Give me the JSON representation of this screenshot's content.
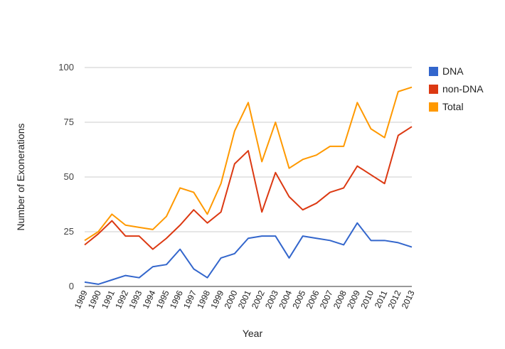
{
  "chart_data": {
    "type": "line",
    "x": [
      "1989",
      "1990",
      "1991",
      "1992",
      "1993",
      "1994",
      "1995",
      "1996",
      "1997",
      "1998",
      "1999",
      "2000",
      "2001",
      "2002",
      "2003",
      "2004",
      "2005",
      "2006",
      "2007",
      "2008",
      "2009",
      "2010",
      "2011",
      "2012",
      "2013"
    ],
    "series": [
      {
        "name": "DNA",
        "color": "#3366cc",
        "values": [
          2,
          1,
          3,
          5,
          4,
          9,
          10,
          17,
          8,
          4,
          13,
          15,
          22,
          23,
          23,
          13,
          23,
          22,
          21,
          19,
          29,
          21,
          21,
          20,
          18
        ]
      },
      {
        "name": "non-DNA",
        "color": "#dc3912",
        "values": [
          19,
          24,
          30,
          23,
          23,
          17,
          22,
          28,
          35,
          29,
          34,
          56,
          62,
          34,
          52,
          41,
          35,
          38,
          43,
          45,
          55,
          51,
          47,
          69,
          73
        ]
      },
      {
        "name": "Total",
        "color": "#ff9900",
        "values": [
          21,
          25,
          33,
          28,
          27,
          26,
          32,
          45,
          43,
          33,
          47,
          71,
          84,
          57,
          75,
          54,
          58,
          60,
          64,
          64,
          84,
          72,
          68,
          89,
          91
        ]
      }
    ],
    "xlabel": "Year",
    "ylabel": "Number of Exonerations",
    "ylim": [
      0,
      100
    ],
    "yticks": [
      0,
      25,
      50,
      75,
      100
    ],
    "grid": true,
    "legend": "right"
  }
}
